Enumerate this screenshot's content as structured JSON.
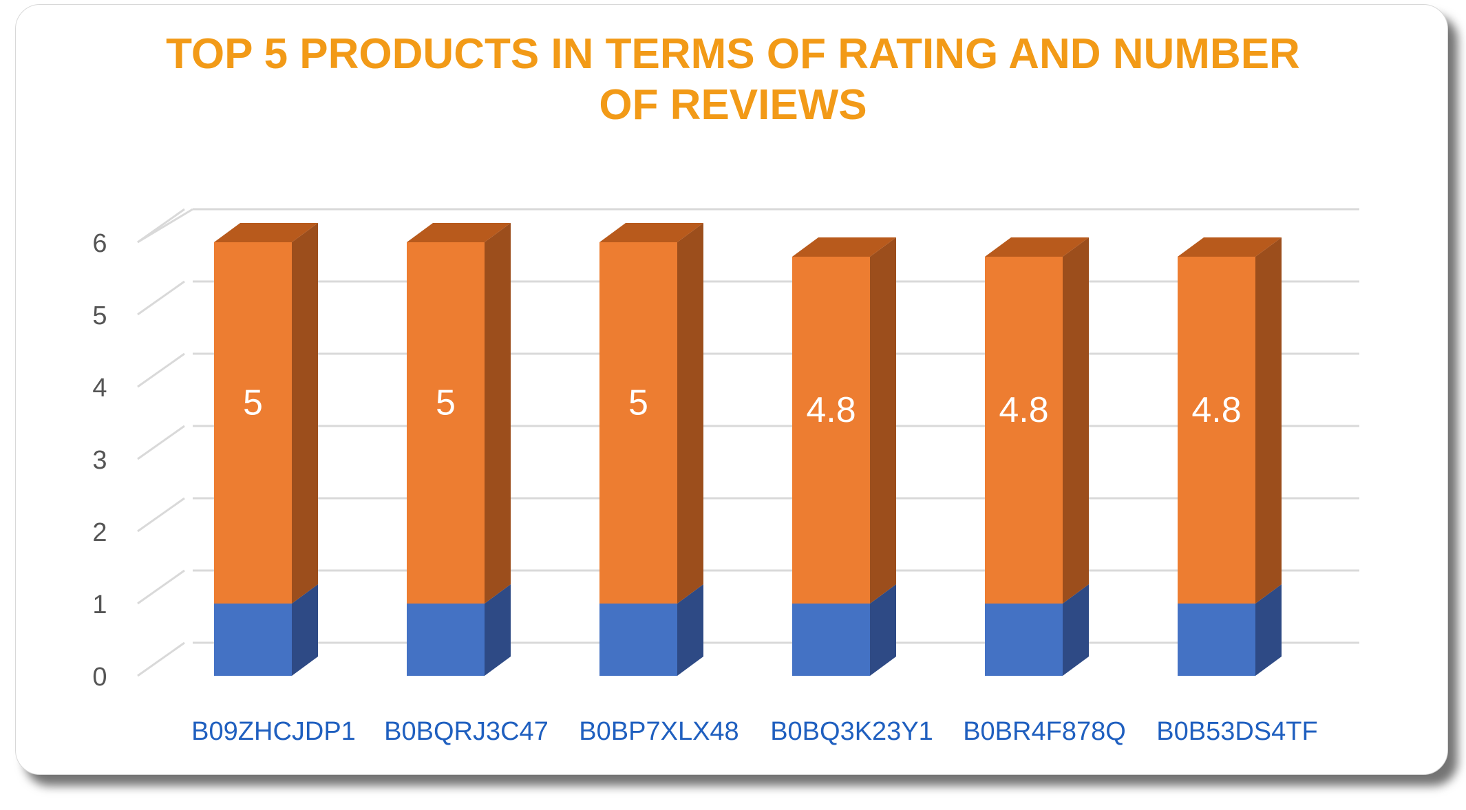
{
  "chart_data": {
    "type": "bar",
    "stacked": true,
    "three_d": true,
    "title": "TOP 5 PRODUCTS IN TERMS OF RATING AND NUMBER\nOF REVIEWS",
    "categories": [
      "B09ZHCJDP1",
      "B0BQRJ3C47",
      "B0BP7XLX48",
      "B0BQ3K23Y1",
      "B0BR4F878Q",
      "B0B53DS4TF"
    ],
    "series": [
      {
        "values": [
          1,
          1,
          1,
          1,
          1,
          1
        ],
        "color": "#4472c4",
        "side_color": "#2e4a85",
        "show_labels": false
      },
      {
        "values": [
          5,
          5,
          5,
          4.8,
          4.8,
          4.8
        ],
        "color": "#ed7d31",
        "side_color": "#9c4e1c",
        "top_color": "#b85a1c",
        "show_labels": true
      }
    ],
    "ylim": [
      0,
      6
    ],
    "yticks": [
      0,
      1,
      2,
      3,
      4,
      5,
      6
    ],
    "grid": true,
    "legend": "none",
    "colors": {
      "title": "#f29a17",
      "axis_labels": "#1f5fbf",
      "tick_labels": "#555555",
      "data_labels": "#ffffff",
      "grid": "#d9d9d9"
    }
  }
}
